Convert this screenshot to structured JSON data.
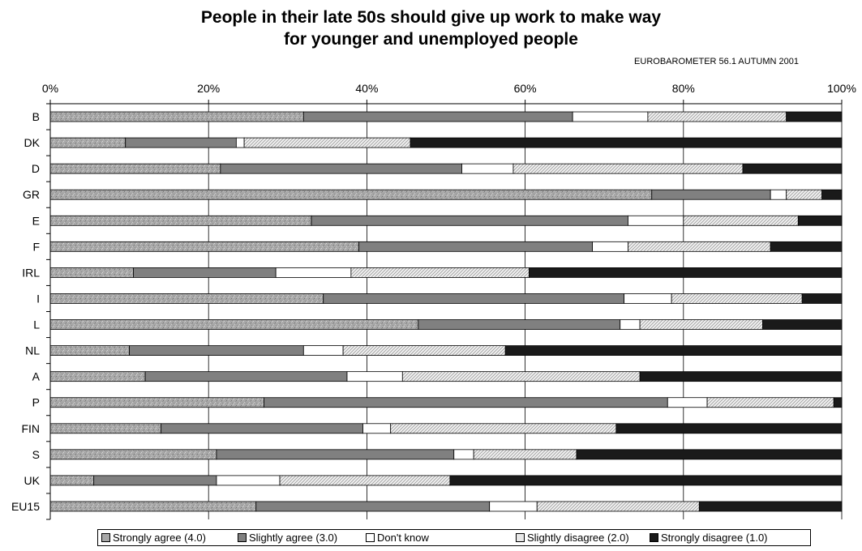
{
  "chart_data": {
    "type": "bar",
    "orientation": "horizontal",
    "stacked": true,
    "percent_scale": true,
    "title_line1": "People in their late 50s should give up work to make way",
    "title_line2": "for younger and unemployed people",
    "subtitle": "EUROBAROMETER 56.1  AUTUMN 2001",
    "xlabel": "",
    "ylabel": "",
    "xlim": [
      0,
      100
    ],
    "x_ticks": [
      "0%",
      "20%",
      "40%",
      "60%",
      "80%",
      "100%"
    ],
    "grid": "vertical",
    "legend_position": "bottom",
    "categories": [
      "B",
      "DK",
      "D",
      "GR",
      "E",
      "F",
      "IRL",
      "I",
      "L",
      "NL",
      "A",
      "P",
      "FIN",
      "S",
      "UK",
      "EU15"
    ],
    "series": [
      {
        "name": "Strongly agree (4.0)",
        "color": "#a8a8a8",
        "values": [
          32,
          9.5,
          21.5,
          76,
          33,
          39,
          10.5,
          34.5,
          46.5,
          10,
          12,
          27,
          14,
          21,
          5.5,
          26
        ]
      },
      {
        "name": "Slightly agree (3.0)",
        "color": "#808080",
        "values": [
          34,
          14,
          30.5,
          15,
          40,
          29.5,
          18,
          38,
          25.5,
          22,
          25.5,
          51,
          25.5,
          30,
          15.5,
          29.5
        ]
      },
      {
        "name": "Don't know",
        "color": "#ffffff",
        "values": [
          9.5,
          1,
          6.5,
          2,
          7,
          4.5,
          9.5,
          6,
          2.5,
          5,
          7,
          5,
          3.5,
          2.5,
          8,
          6
        ]
      },
      {
        "name": "Slightly disagree (2.0)",
        "color": "#e0e0e0",
        "values": [
          17.5,
          21,
          29,
          4.5,
          14.5,
          18,
          22.5,
          16.5,
          15.5,
          20.5,
          30,
          16,
          28.5,
          13,
          21.5,
          20.5
        ]
      },
      {
        "name": "Strongly disagree (1.0)",
        "color": "#1a1a1a",
        "values": [
          7,
          54.5,
          12.5,
          2.5,
          5.5,
          9,
          39.5,
          5,
          10,
          42.5,
          25.5,
          1,
          28.5,
          33.5,
          49.5,
          18
        ]
      }
    ]
  }
}
